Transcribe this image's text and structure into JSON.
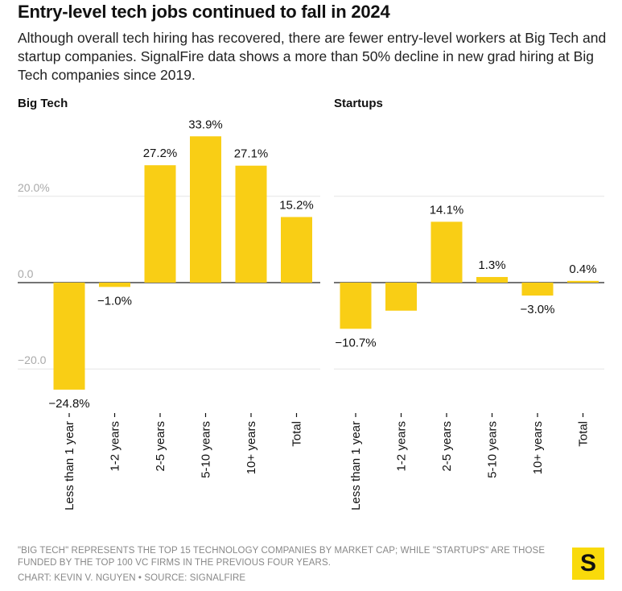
{
  "title": "Entry-level tech jobs continued to fall in 2024",
  "subtitle": "Although overall tech hiring has recovered, there are fewer entry-level workers at Big Tech and startup companies. SignalFire data shows a more than 50% decline in new grad hiring at Big Tech companies since 2019.",
  "footnote": "\"Big Tech\" represents the top 15 technology companies by market cap; while \"Startups\" are those funded by the top 100 VC firms in the previous four years.",
  "credit": "Chart: Kevin V. Nguyen • Source: SignalFire",
  "logo": {
    "letter": "S",
    "color": "#F9DA0B"
  },
  "colors": {
    "bar": "#F9CE15",
    "grid": "#e6e6e6",
    "zero": "#222222",
    "tick_label": "#aaaaaa"
  },
  "chart_data": [
    {
      "type": "bar",
      "title": "Big Tech",
      "categories": [
        "Less than 1 year",
        "1-2 years",
        "2-5 years",
        "5-10 years",
        "10+ years",
        "Total"
      ],
      "values": [
        -24.8,
        -1.0,
        27.2,
        33.9,
        27.1,
        15.2
      ],
      "labels": [
        "−24.8%",
        "−1.0%",
        "27.2%",
        "33.9%",
        "27.1%",
        "15.2%"
      ],
      "yticks": [
        {
          "value": 20,
          "label": "20.0%"
        },
        {
          "value": 0,
          "label": "0.0"
        },
        {
          "value": -20,
          "label": "−20.0"
        }
      ],
      "ylim": [
        -29,
        37
      ],
      "grid": true
    },
    {
      "type": "bar",
      "title": "Startups",
      "categories": [
        "Less than 1 year",
        "1-2 years",
        "2-5 years",
        "5-10 years",
        "10+ years",
        "Total"
      ],
      "values": [
        -10.7,
        -6.5,
        14.1,
        1.3,
        -3.0,
        0.4
      ],
      "labels": [
        "−10.7%",
        "",
        "14.1%",
        "1.3%",
        "−3.0%",
        "0.4%"
      ],
      "yticks": [
        {
          "value": 20,
          "label": ""
        },
        {
          "value": 0,
          "label": ""
        },
        {
          "value": -20,
          "label": ""
        }
      ],
      "ylim": [
        -29,
        37
      ],
      "grid": true
    }
  ]
}
